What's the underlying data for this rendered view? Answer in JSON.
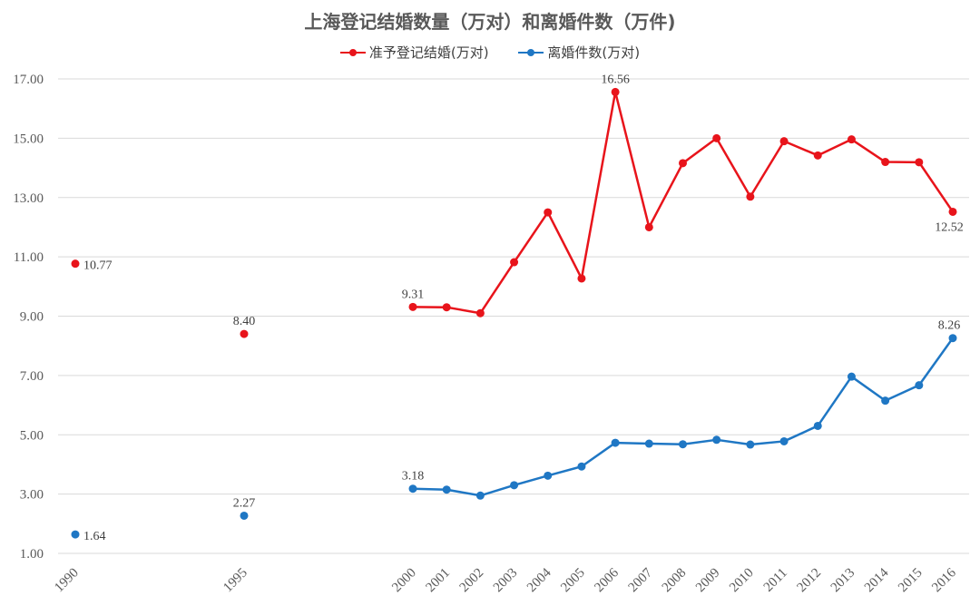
{
  "chart_data": {
    "type": "line",
    "title": "上海登记结婚数量（万对）和离婚件数（万件)",
    "xlabel": "",
    "ylabel": "",
    "ylim": [
      1,
      17
    ],
    "yticks": [
      "1.00",
      "3.00",
      "5.00",
      "7.00",
      "9.00",
      "11.00",
      "13.00",
      "15.00",
      "17.00"
    ],
    "grid": true,
    "legend_position": "top",
    "x": [
      1990,
      1995,
      2000,
      2001,
      2002,
      2003,
      2004,
      2005,
      2006,
      2007,
      2008,
      2009,
      2010,
      2011,
      2012,
      2013,
      2014,
      2015,
      2016
    ],
    "series": [
      {
        "name": "准予登记结婚(万对)",
        "color": "#e8141b",
        "values": [
          10.77,
          8.4,
          9.31,
          9.3,
          9.1,
          10.82,
          12.5,
          10.27,
          16.56,
          12.0,
          14.16,
          15.0,
          13.03,
          14.9,
          14.42,
          14.96,
          14.2,
          14.19,
          12.52
        ],
        "data_labels": {
          "1990": "10.77",
          "1995": "8.40",
          "2000": "9.31",
          "2006": "16.56",
          "2016": "12.52"
        }
      },
      {
        "name": "离婚件数(万对)",
        "color": "#1f77c4",
        "values": [
          1.64,
          2.27,
          3.18,
          3.15,
          2.95,
          3.3,
          3.62,
          3.93,
          4.73,
          4.7,
          4.68,
          4.83,
          4.67,
          4.78,
          5.3,
          6.96,
          6.15,
          6.67,
          8.26
        ],
        "data_labels": {
          "1990": "1.64",
          "1995": "2.27",
          "2000": "3.18",
          "2016": "8.26"
        }
      }
    ]
  }
}
